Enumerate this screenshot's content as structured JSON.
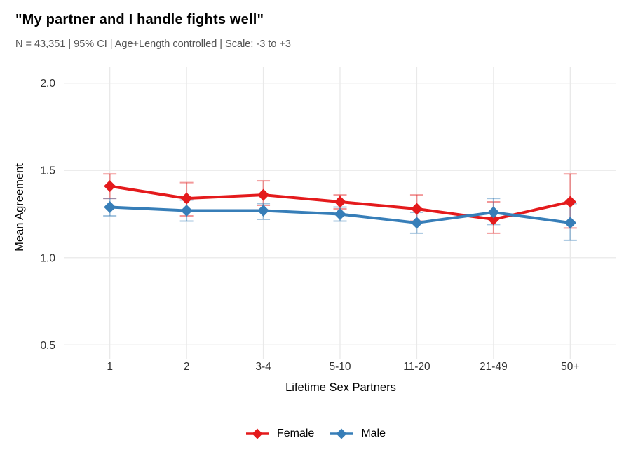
{
  "title": "\"My partner and I handle fights well\"",
  "subtitle": "N = 43,351 | 95% CI | Age+Length controlled | Scale: -3 to +3",
  "chart_data": {
    "type": "line",
    "title": "\"My partner and I handle fights well\"",
    "subtitle": "N = 43,351 | 95% CI | Age+Length controlled | Scale: -3 to +3",
    "xlabel": "Lifetime Sex Partners",
    "ylabel": "Mean Agreement",
    "categories": [
      "1",
      "2",
      "3-4",
      "5-10",
      "11-20",
      "21-49",
      "50+"
    ],
    "series": [
      {
        "name": "Female",
        "color": "#E41A1C",
        "values": [
          1.41,
          1.34,
          1.36,
          1.32,
          1.28,
          1.22,
          1.32
        ],
        "ci_low": [
          1.34,
          1.24,
          1.3,
          1.28,
          1.21,
          1.14,
          1.17
        ],
        "ci_high": [
          1.48,
          1.43,
          1.44,
          1.36,
          1.36,
          1.32,
          1.48
        ]
      },
      {
        "name": "Male",
        "color": "#377EB8",
        "values": [
          1.29,
          1.27,
          1.27,
          1.25,
          1.2,
          1.26,
          1.2
        ],
        "ci_low": [
          1.24,
          1.21,
          1.22,
          1.21,
          1.14,
          1.19,
          1.1
        ],
        "ci_high": [
          1.34,
          1.33,
          1.31,
          1.29,
          1.26,
          1.34,
          1.31
        ]
      }
    ],
    "yticks": [
      0.5,
      1.0,
      1.5,
      2.0
    ],
    "ytick_labels": [
      "0.5",
      "1.0",
      "1.5",
      "2.0"
    ],
    "ylim": [
      0.5,
      2.0
    ],
    "grid": "major-only",
    "grid_color": "#E9E9E9",
    "background": "#FFFFFF",
    "legend_position": "bottom-center",
    "marker": "diamond",
    "error_bars": "95% CI",
    "error_bar_opacity": 0.45
  }
}
